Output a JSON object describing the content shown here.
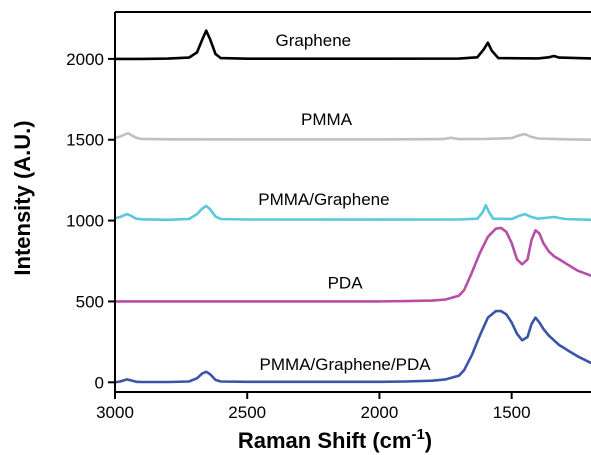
{
  "chart_data": {
    "type": "line",
    "xlabel": "Raman Shift (cm",
    "xlabel_sup": "-1",
    "xlabel_close": ")",
    "ylabel": "Intensity (A.U.)",
    "xlim": [
      3000,
      1200
    ],
    "x_reversed": true,
    "ylim": [
      -60,
      2290
    ],
    "x_ticks": [
      3000,
      2500,
      2000,
      1500
    ],
    "x_tick_labels": [
      "3000",
      "2500",
      "2000",
      "1500"
    ],
    "y_ticks": [
      0,
      500,
      1000,
      1500,
      2000
    ],
    "y_tick_labels": [
      "0",
      "500",
      "1000",
      "1500",
      "2000"
    ],
    "grid": false,
    "series": [
      {
        "name": "Graphene",
        "color": "#000000",
        "x": [
          3000,
          2900,
          2800,
          2720,
          2690,
          2670,
          2655,
          2640,
          2620,
          2600,
          2500,
          2000,
          1700,
          1630,
          1605,
          1590,
          1575,
          1550,
          1400,
          1360,
          1340,
          1320,
          1200
        ],
        "values": [
          2000,
          2000,
          2002,
          2008,
          2040,
          2120,
          2175,
          2120,
          2030,
          2005,
          2001,
          2001,
          2002,
          2010,
          2060,
          2100,
          2050,
          2005,
          2003,
          2010,
          2018,
          2008,
          2003
        ]
      },
      {
        "name": "PMMA",
        "color": "#c0c0c0",
        "x": [
          3000,
          2980,
          2960,
          2950,
          2940,
          2920,
          2900,
          2800,
          2500,
          2000,
          1760,
          1730,
          1700,
          1600,
          1500,
          1470,
          1450,
          1430,
          1400,
          1300,
          1200
        ],
        "values": [
          1510,
          1520,
          1535,
          1540,
          1530,
          1512,
          1505,
          1503,
          1502,
          1502,
          1504,
          1512,
          1504,
          1505,
          1510,
          1528,
          1535,
          1520,
          1508,
          1503,
          1500
        ]
      },
      {
        "name": "PMMA/Graphene",
        "color": "#5bc8dc",
        "x": [
          3000,
          2980,
          2955,
          2940,
          2920,
          2900,
          2800,
          2720,
          2690,
          2670,
          2655,
          2640,
          2620,
          2600,
          2500,
          2000,
          1700,
          1630,
          1610,
          1598,
          1585,
          1570,
          1500,
          1470,
          1450,
          1430,
          1400,
          1340,
          1300,
          1200
        ],
        "values": [
          1015,
          1022,
          1040,
          1030,
          1012,
          1008,
          1005,
          1010,
          1040,
          1075,
          1090,
          1070,
          1025,
          1010,
          1007,
          1006,
          1007,
          1012,
          1050,
          1095,
          1050,
          1012,
          1010,
          1030,
          1040,
          1025,
          1012,
          1022,
          1010,
          1005
        ]
      },
      {
        "name": "PDA",
        "color": "#b74fa8",
        "x": [
          3000,
          2800,
          2500,
          2000,
          1900,
          1800,
          1750,
          1700,
          1680,
          1650,
          1620,
          1590,
          1560,
          1540,
          1520,
          1500,
          1480,
          1460,
          1440,
          1425,
          1410,
          1395,
          1380,
          1360,
          1340,
          1320,
          1300,
          1280,
          1250,
          1200
        ],
        "values": [
          500,
          500,
          500,
          500,
          502,
          505,
          512,
          535,
          570,
          680,
          800,
          900,
          950,
          955,
          930,
          860,
          760,
          730,
          760,
          880,
          940,
          920,
          860,
          810,
          780,
          760,
          740,
          720,
          690,
          660
        ]
      },
      {
        "name": "PMMA/Graphene/PDA",
        "color": "#3a55a8",
        "x": [
          3000,
          2980,
          2955,
          2940,
          2920,
          2900,
          2800,
          2720,
          2690,
          2670,
          2655,
          2640,
          2620,
          2600,
          2500,
          2000,
          1900,
          1800,
          1750,
          1700,
          1680,
          1650,
          1620,
          1590,
          1560,
          1540,
          1520,
          1500,
          1480,
          1460,
          1440,
          1425,
          1410,
          1395,
          1380,
          1360,
          1340,
          1320,
          1300,
          1280,
          1250,
          1200
        ],
        "values": [
          0,
          5,
          18,
          12,
          3,
          2,
          2,
          5,
          25,
          55,
          65,
          50,
          15,
          5,
          3,
          3,
          5,
          10,
          18,
          40,
          75,
          170,
          290,
          400,
          440,
          440,
          420,
          370,
          300,
          260,
          280,
          360,
          400,
          370,
          330,
          290,
          260,
          230,
          210,
          190,
          160,
          120
        ]
      }
    ]
  }
}
